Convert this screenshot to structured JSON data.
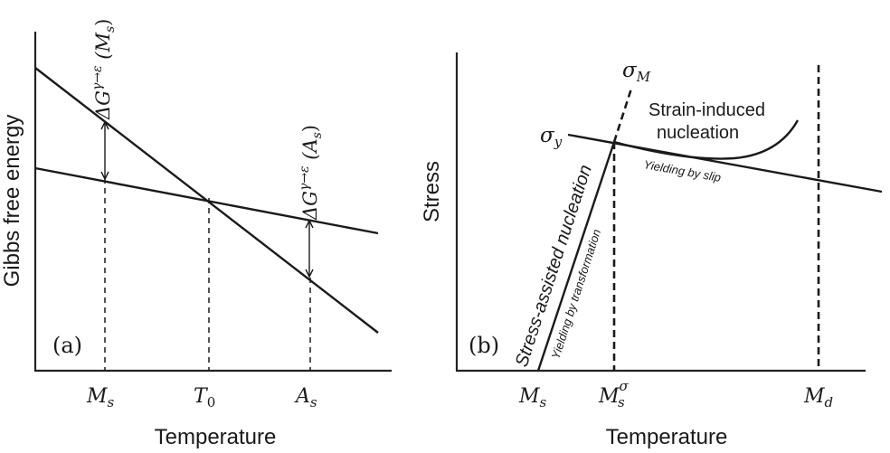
{
  "panel_a": {
    "panel_label": "(a)",
    "x_axis_label": "Temperature",
    "y_axis_label": "Gibbs free energy",
    "ticks": {
      "ms": {
        "main": "M",
        "sub": "s"
      },
      "t0": {
        "main": "T",
        "sub": "0"
      },
      "as": {
        "main": "A",
        "sub": "s"
      }
    },
    "annotation_ms": {
      "delta_g": "ΔG",
      "superscript": "γ→ε",
      "paren": "(M",
      "paren_sub": "s",
      "paren_close": ")"
    },
    "annotation_as": {
      "delta_g": "ΔG",
      "superscript": "γ→ε",
      "paren": "(A",
      "paren_sub": "s",
      "paren_close": ")"
    }
  },
  "panel_b": {
    "panel_label": "(b)",
    "x_axis_label": "Temperature",
    "y_axis_label": "Stress",
    "ticks": {
      "ms": {
        "main": "M",
        "sub": "s"
      },
      "ms_sigma": {
        "main": "M",
        "sub": "s",
        "sup": "σ"
      },
      "md": {
        "main": "M",
        "sub": "d"
      }
    },
    "sigma_m": {
      "main": "σ",
      "sub": "M"
    },
    "sigma_y": {
      "main": "σ",
      "sub": "y"
    },
    "strain_induced_line1": "Strain-induced",
    "strain_induced_line2": "nucleation",
    "yielding_by_slip": "Yielding by slip",
    "stress_assisted": "Stress-assisted nucleation",
    "yielding_by_transformation": "Yielding by transformation"
  }
}
